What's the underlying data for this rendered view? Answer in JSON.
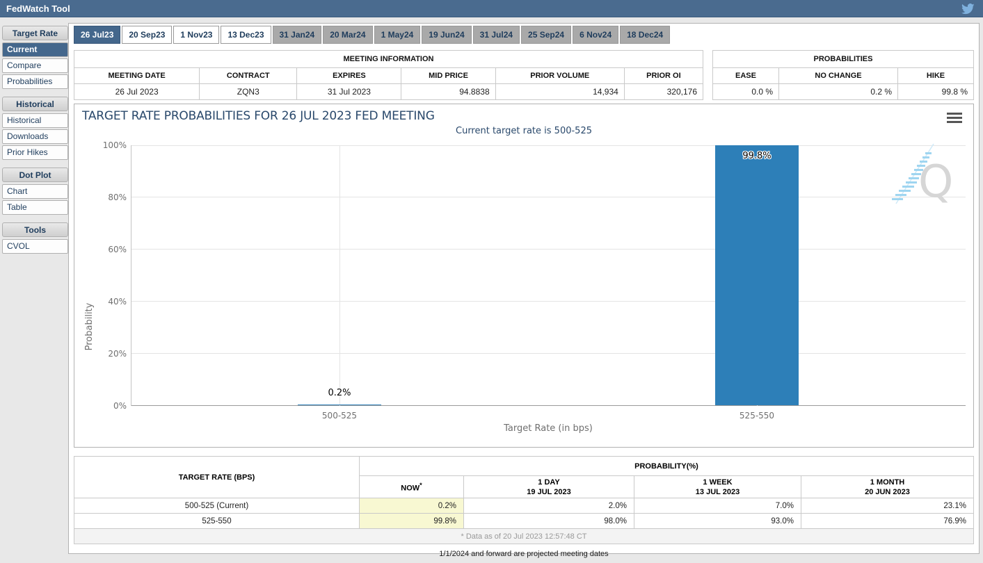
{
  "header": {
    "title": "FedWatch Tool",
    "twitter_icon": "twitter-bird-icon"
  },
  "sidebar": {
    "sections": [
      {
        "header": "Target Rate",
        "items": [
          "Current",
          "Compare",
          "Probabilities"
        ]
      },
      {
        "header": "Historical",
        "items": [
          "Historical",
          "Downloads",
          "Prior Hikes"
        ]
      },
      {
        "header": "Dot Plot",
        "items": [
          "Chart",
          "Table"
        ]
      },
      {
        "header": "Tools",
        "items": [
          "CVOL"
        ]
      }
    ],
    "selected_item": "Current"
  },
  "tabs": {
    "items": [
      {
        "label": "26 Jul23",
        "selected": true
      },
      {
        "label": "20 Sep23",
        "selected": false
      },
      {
        "label": "1 Nov23",
        "selected": false
      },
      {
        "label": "13 Dec23",
        "selected": false
      },
      {
        "label": "31 Jan24",
        "selected": false
      },
      {
        "label": "20 Mar24",
        "selected": false
      },
      {
        "label": "1 May24",
        "selected": false
      },
      {
        "label": "19 Jun24",
        "selected": false
      },
      {
        "label": "31 Jul24",
        "selected": false
      },
      {
        "label": "25 Sep24",
        "selected": false
      },
      {
        "label": "6 Nov24",
        "selected": false
      },
      {
        "label": "18 Dec24",
        "selected": false
      }
    ]
  },
  "meeting_info": {
    "title": "MEETING INFORMATION",
    "columns": [
      "MEETING DATE",
      "CONTRACT",
      "EXPIRES",
      "MID PRICE",
      "PRIOR VOLUME",
      "PRIOR OI"
    ],
    "values": [
      "26 Jul 2023",
      "ZQN3",
      "31 Jul 2023",
      "94.8838",
      "14,934",
      "320,176"
    ]
  },
  "probabilities_summary": {
    "title": "PROBABILITIES",
    "columns": [
      "EASE",
      "NO CHANGE",
      "HIKE"
    ],
    "values": [
      "0.0 %",
      "0.2 %",
      "99.8 %"
    ]
  },
  "chart_data": {
    "type": "bar",
    "title": "TARGET RATE PROBABILITIES FOR 26 JUL 2023 FED MEETING",
    "subtitle": "Current target rate is 500-525",
    "categories": [
      "500-525",
      "525-550"
    ],
    "values": [
      0.2,
      99.8
    ],
    "value_labels": [
      "0.2%",
      "99.8%"
    ],
    "xlabel": "Target Rate (in bps)",
    "ylabel": "Probability",
    "ylim": [
      0,
      100
    ],
    "yticks": [
      "0%",
      "20%",
      "40%",
      "60%",
      "80%",
      "100%"
    ],
    "bar_color": "#2d7fb8",
    "grid": true,
    "legend": "none",
    "menu_icon": "hamburger-menu-icon",
    "watermark_icon": "quikstrike-q-watermark"
  },
  "probability_table": {
    "col1_header": "TARGET RATE (BPS)",
    "group_header": "PROBABILITY(%)",
    "now_label": "NOW",
    "now_sup": "*",
    "col_labels": [
      "1 DAY",
      "1 WEEK",
      "1 MONTH"
    ],
    "col_dates": [
      "19 JUL 2023",
      "13 JUL 2023",
      "20 JUN 2023"
    ],
    "rows": [
      {
        "rate": "500-525 (Current)",
        "now": "0.2%",
        "day": "2.0%",
        "week": "7.0%",
        "month": "23.1%"
      },
      {
        "rate": "525-550",
        "now": "99.8%",
        "day": "98.0%",
        "week": "93.0%",
        "month": "76.9%"
      }
    ],
    "footnote": "* Data as of 20 Jul 2023 12:57:48 CT"
  },
  "footer_note": "1/1/2024 and forward are projected meeting dates"
}
